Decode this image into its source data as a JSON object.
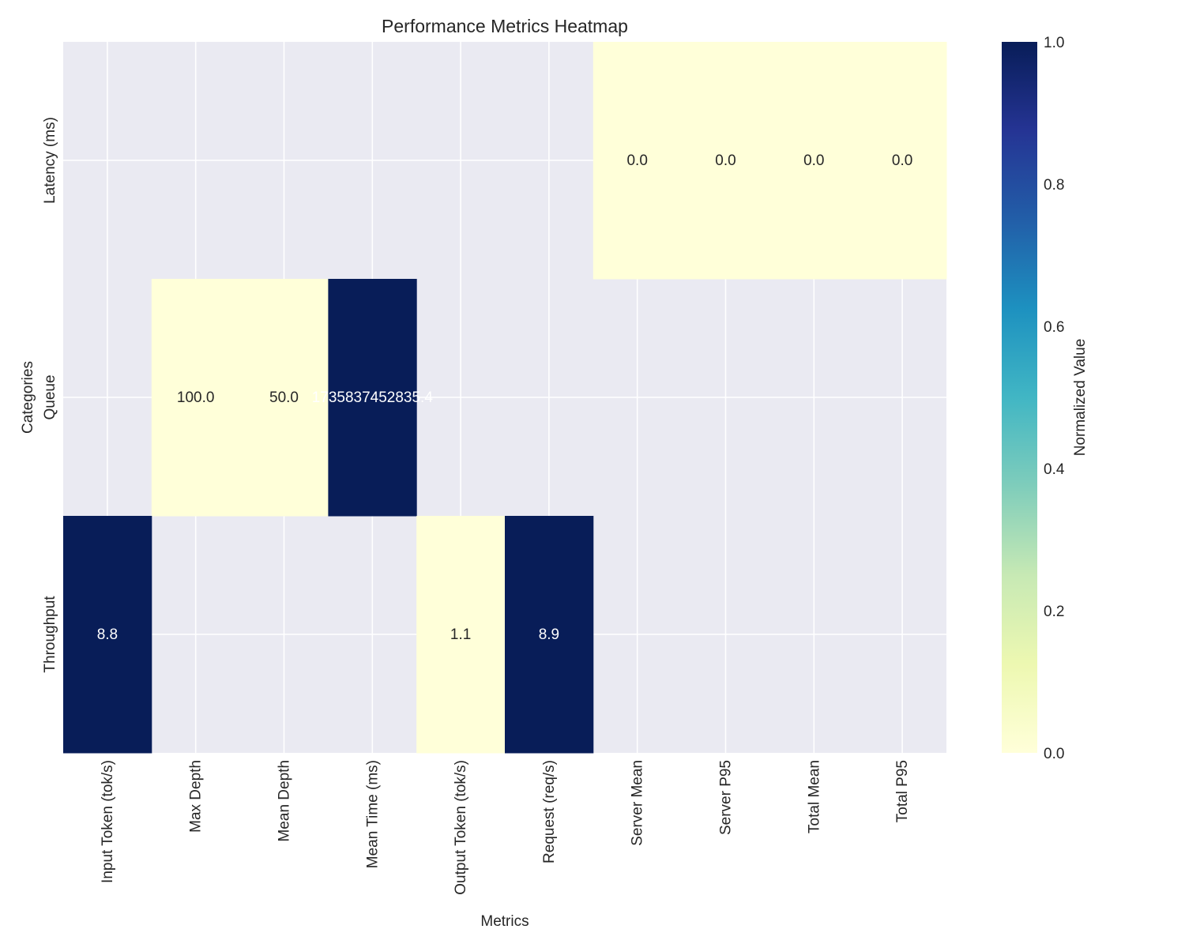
{
  "chart_data": {
    "type": "heatmap",
    "title": "Performance Metrics Heatmap",
    "xlabel": "Metrics",
    "ylabel": "Categories",
    "columns": [
      "Input Token (tok/s)",
      "Max Depth",
      "Mean Depth",
      "Mean Time (ms)",
      "Output Token (tok/s)",
      "Request (req/s)",
      "Server Mean",
      "Server P95",
      "Total Mean",
      "Total P95"
    ],
    "rows": [
      "Latency (ms)",
      "Queue",
      "Throughput"
    ],
    "cells": [
      {
        "row": 0,
        "col": 6,
        "label": "0.0",
        "normalized": 0.0
      },
      {
        "row": 0,
        "col": 7,
        "label": "0.0",
        "normalized": 0.0
      },
      {
        "row": 0,
        "col": 8,
        "label": "0.0",
        "normalized": 0.0
      },
      {
        "row": 0,
        "col": 9,
        "label": "0.0",
        "normalized": 0.0
      },
      {
        "row": 1,
        "col": 1,
        "label": "100.0",
        "normalized": 0.0
      },
      {
        "row": 1,
        "col": 2,
        "label": "50.0",
        "normalized": 0.0
      },
      {
        "row": 1,
        "col": 3,
        "label": "1735837452835.4",
        "normalized": 1.0
      },
      {
        "row": 2,
        "col": 0,
        "label": "8.8",
        "normalized": 1.0
      },
      {
        "row": 2,
        "col": 4,
        "label": "1.1",
        "normalized": 0.0
      },
      {
        "row": 2,
        "col": 5,
        "label": "8.9",
        "normalized": 1.0
      }
    ],
    "colorbar": {
      "label": "Normalized Value",
      "ticks": [
        "0.0",
        "0.2",
        "0.4",
        "0.6",
        "0.8",
        "1.0"
      ],
      "range": [
        0,
        1
      ],
      "colormap": "YlGnBu",
      "stops": [
        "#ffffd9",
        "#edf8b1",
        "#c7e9b4",
        "#7fcdbb",
        "#41b6c4",
        "#1d91c0",
        "#225ea8",
        "#253494",
        "#081d58"
      ]
    },
    "background": "#eaeaf2",
    "grid": true
  }
}
